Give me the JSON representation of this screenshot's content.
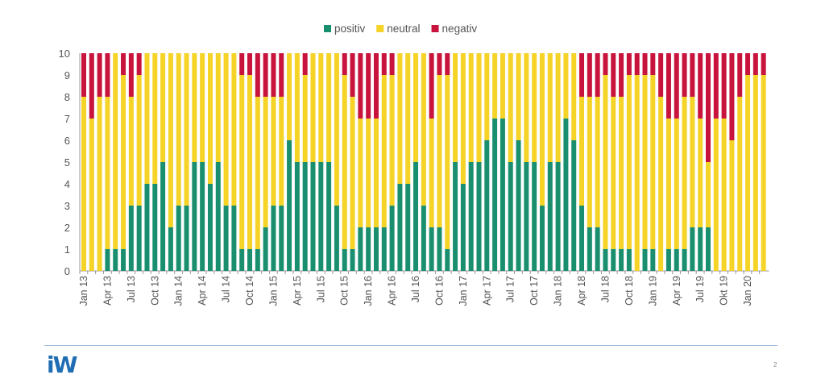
{
  "chart_data": {
    "type": "bar",
    "stacked": true,
    "legend": {
      "placement": "top",
      "entries": [
        "positiv",
        "neutral",
        "negativ"
      ]
    },
    "ylim": [
      0,
      10
    ],
    "y_ticks": [
      0,
      1,
      2,
      3,
      4,
      5,
      6,
      7,
      8,
      9,
      10
    ],
    "x_start": "Jan 13",
    "x_end": "Mar 20",
    "x_tick_labels": [
      "Jan 13",
      "Apr 13",
      "Jul 13",
      "Oct 13",
      "Jan 14",
      "Apr 14",
      "Jul 14",
      "Oct 14",
      "Jan 15",
      "Apr 15",
      "Jul 15",
      "Oct 15",
      "Jan 16",
      "Apr 16",
      "Jul 16",
      "Oct 16",
      "Jan 17",
      "Apr 17",
      "Jul 17",
      "Oct 17",
      "Jan 18",
      "Apr 18",
      "Jul 18",
      "Oct 18",
      "Jan 19",
      "Apr 19",
      "Jul 19",
      "Okt 19",
      "Jan 20"
    ],
    "grid": false,
    "series": [
      {
        "name": "positiv",
        "color": "#1a8f6f",
        "values": [
          0,
          0,
          0,
          1,
          1,
          1,
          3,
          3,
          4,
          4,
          5,
          2,
          3,
          3,
          5,
          5,
          4,
          5,
          3,
          3,
          1,
          1,
          1,
          2,
          3,
          3,
          6,
          5,
          5,
          5,
          5,
          5,
          3,
          1,
          1,
          2,
          2,
          2,
          2,
          3,
          4,
          4,
          5,
          3,
          2,
          2,
          1,
          5,
          4,
          5,
          5,
          6,
          7,
          7,
          5,
          6,
          5,
          5,
          3,
          5,
          5,
          7,
          6,
          3,
          2,
          2,
          1,
          1,
          1,
          1,
          0,
          1,
          1,
          0,
          1,
          1,
          1,
          2,
          2,
          2,
          0,
          0,
          0,
          0,
          0,
          0,
          0
        ]
      },
      {
        "name": "neutral",
        "color": "#f5d327",
        "values": [
          8,
          7,
          8,
          7,
          9,
          8,
          5,
          6,
          6,
          6,
          5,
          8,
          7,
          7,
          5,
          5,
          6,
          5,
          7,
          7,
          8,
          8,
          7,
          6,
          5,
          5,
          4,
          5,
          4,
          5,
          5,
          5,
          7,
          8,
          7,
          5,
          5,
          5,
          7,
          6,
          6,
          6,
          5,
          7,
          5,
          7,
          8,
          5,
          6,
          5,
          5,
          4,
          3,
          3,
          5,
          4,
          5,
          5,
          7,
          5,
          5,
          3,
          4,
          5,
          6,
          6,
          8,
          7,
          7,
          8,
          9,
          8,
          8,
          8,
          6,
          6,
          7,
          6,
          5,
          3,
          7,
          7,
          6,
          8,
          9,
          9,
          9
        ]
      },
      {
        "name": "negativ",
        "color": "#c8143c",
        "values": [
          2,
          3,
          2,
          2,
          0,
          1,
          2,
          1,
          0,
          0,
          0,
          0,
          0,
          0,
          0,
          0,
          0,
          0,
          0,
          0,
          1,
          1,
          2,
          2,
          2,
          2,
          0,
          0,
          1,
          0,
          0,
          0,
          0,
          1,
          2,
          3,
          3,
          3,
          1,
          1,
          0,
          0,
          0,
          0,
          3,
          1,
          1,
          0,
          0,
          0,
          0,
          0,
          0,
          0,
          0,
          0,
          0,
          0,
          0,
          0,
          0,
          0,
          0,
          2,
          2,
          2,
          1,
          2,
          2,
          1,
          1,
          1,
          1,
          2,
          3,
          3,
          2,
          2,
          3,
          5,
          3,
          3,
          4,
          2,
          1,
          1,
          1
        ]
      }
    ]
  },
  "footer": {
    "logo": "iW",
    "page_number": "2",
    "logo_color": "#1f6db3"
  }
}
